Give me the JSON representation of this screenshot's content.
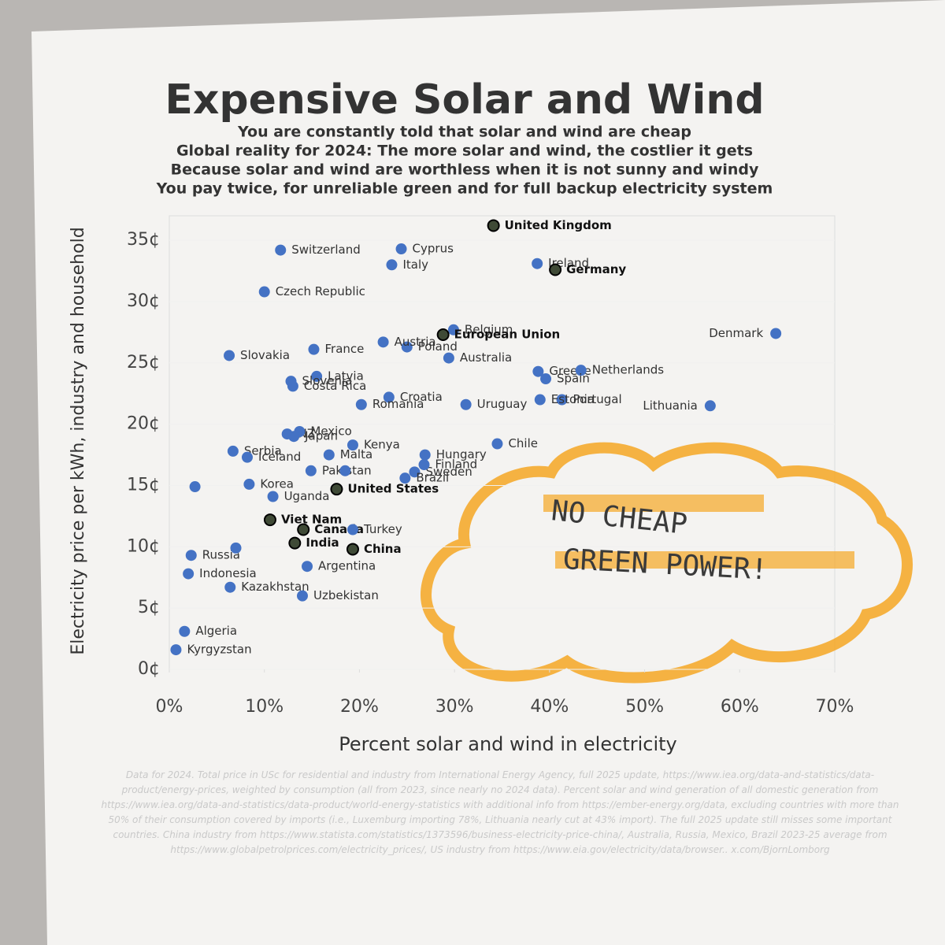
{
  "chart_data": {
    "type": "scatter",
    "title": "Expensive Solar and Wind",
    "subtitle": [
      "You are constantly told that solar and wind are cheap",
      "Global reality for 2024: The more solar and wind, the costlier it gets",
      "Because solar and wind are worthless when it is not sunny and windy",
      "You pay twice, for unreliable green and for full backup electricity system"
    ],
    "x_label": "Percent solar and wind in electricity",
    "y_label": "Electricity price per kWh, industry and household",
    "xlim": [
      0,
      70
    ],
    "ylim": [
      0,
      37
    ],
    "xticks": [
      {
        "value": 0,
        "label": "0%"
      },
      {
        "value": 10,
        "label": "10%"
      },
      {
        "value": 20,
        "label": "20%"
      },
      {
        "value": 30,
        "label": "30%"
      },
      {
        "value": 40,
        "label": "40%"
      },
      {
        "value": 50,
        "label": "50%"
      },
      {
        "value": 60,
        "label": "60%"
      },
      {
        "value": 70,
        "label": "70%"
      }
    ],
    "yticks": [
      {
        "value": 0,
        "label": "0¢"
      },
      {
        "value": 5,
        "label": "5¢"
      },
      {
        "value": 10,
        "label": "10¢"
      },
      {
        "value": 15,
        "label": "15¢"
      },
      {
        "value": 20,
        "label": "20¢"
      },
      {
        "value": 25,
        "label": "25¢"
      },
      {
        "value": 30,
        "label": "30¢"
      },
      {
        "value": 35,
        "label": "35¢"
      }
    ],
    "labels": [
      "United Kingdom",
      "Switzerland",
      "Cyprus",
      "Italy",
      "Ireland",
      "Germany",
      "Czech Republic",
      "Denmark",
      "Belgium",
      "European Union",
      "Poland",
      "Austria",
      "France",
      "Slovakia",
      "Australia",
      "Greece",
      "Netherlands",
      "Spain",
      "Latvia",
      "Slovenia",
      "Costa Rica",
      "Croatia",
      "Portugal",
      "Estonia",
      "Uruguay",
      "Romania",
      "Lithuania",
      "NZ",
      "Mexico",
      "Japan",
      "Sweden",
      "Chile",
      "Kenya",
      "Malta",
      "Hungary",
      "Finland",
      "Brazil",
      "Serbia",
      "Iceland",
      "Pakistan",
      null,
      null,
      "Korea",
      "United States",
      "Uganda",
      "Viet Nam",
      "Canada",
      "Turkey",
      "India",
      "China",
      "Russia",
      null,
      "Indonesia",
      "Argentina",
      "Kazakhstan",
      "Uzbekistan",
      "Algeria",
      "Kyrgyzstan"
    ],
    "x": [
      34.1,
      11.7,
      24.4,
      23.4,
      38.7,
      40.6,
      10.0,
      63.8,
      29.9,
      28.8,
      25.0,
      22.5,
      15.2,
      6.3,
      29.4,
      38.8,
      43.3,
      39.6,
      15.5,
      12.8,
      13.0,
      23.1,
      41.3,
      39.0,
      31.2,
      20.2,
      56.9,
      12.4,
      13.7,
      13.1,
      25.8,
      34.5,
      19.3,
      16.8,
      26.9,
      26.8,
      24.8,
      6.7,
      8.2,
      14.9,
      18.5,
      2.7,
      8.4,
      17.6,
      10.9,
      10.6,
      14.1,
      19.3,
      13.2,
      19.3,
      2.3,
      7.0,
      2.0,
      14.5,
      6.4,
      14.0,
      1.6,
      0.7
    ],
    "values": [
      36.2,
      34.2,
      34.3,
      33.0,
      33.1,
      32.6,
      30.8,
      27.4,
      27.7,
      27.3,
      26.3,
      26.7,
      26.1,
      25.6,
      25.4,
      24.3,
      24.4,
      23.7,
      23.9,
      23.5,
      23.1,
      22.2,
      22.0,
      22.0,
      21.6,
      21.6,
      21.5,
      19.2,
      19.4,
      19.0,
      16.1,
      18.4,
      18.3,
      17.5,
      17.5,
      16.7,
      15.6,
      17.8,
      17.3,
      16.2,
      16.2,
      14.9,
      15.1,
      14.7,
      14.1,
      12.2,
      11.4,
      11.4,
      10.3,
      9.8,
      9.3,
      9.9,
      7.8,
      8.4,
      6.7,
      6.0,
      3.1,
      1.6
    ],
    "colors": [
      "#3f4a36",
      "#4472c4",
      "#4472c4",
      "#4472c4",
      "#4472c4",
      "#3f4a36",
      "#4472c4",
      "#4472c4",
      "#4472c4",
      "#3f4a36",
      "#4472c4",
      "#4472c4",
      "#4472c4",
      "#4472c4",
      "#4472c4",
      "#4472c4",
      "#4472c4",
      "#4472c4",
      "#4472c4",
      "#4472c4",
      "#4472c4",
      "#4472c4",
      "#4472c4",
      "#4472c4",
      "#4472c4",
      "#4472c4",
      "#4472c4",
      "#4472c4",
      "#4472c4",
      "#4472c4",
      "#4472c4",
      "#4472c4",
      "#4472c4",
      "#4472c4",
      "#4472c4",
      "#4472c4",
      "#4472c4",
      "#4472c4",
      "#4472c4",
      "#4472c4",
      "#4472c4",
      "#4472c4",
      "#4472c4",
      "#3f4a36",
      "#4472c4",
      "#3f4a36",
      "#3f4a36",
      "#4472c4",
      "#3f4a36",
      "#3f4a36",
      "#4472c4",
      "#4472c4",
      "#4472c4",
      "#4472c4",
      "#4472c4",
      "#4472c4",
      "#4472c4",
      "#4472c4"
    ],
    "annotation": [
      "NO CHEAP",
      "GREEN POWER!"
    ],
    "footnote": "Data for 2024. Total price in USc for residential and industry from International Energy Agency, full 2025 update, https://www.iea.org/data-and-statistics/data-product/energy-prices, weighted by consumption (all from 2023, since nearly no 2024 data). Percent solar and wind generation of all domestic generation from https://www.iea.org/data-and-statistics/data-product/world-energy-statistics with additional info from https://ember-energy.org/data, excluding countries with more than 50% of their consumption covered by imports (i.e., Luxemburg importing 78%, Lithuania nearly cut at 43% import). The full 2025 update still misses some important countries. China industry from https://www.statista.com/statistics/1373596/business-electricity-price-china/, Australia, Russia, Mexico, Brazil 2023-25 average from https://www.globalpetrolprices.com/electricity_prices/, US industry from https://www.eia.gov/electricity/data/browser.. x.com/BjornLomborg"
  }
}
